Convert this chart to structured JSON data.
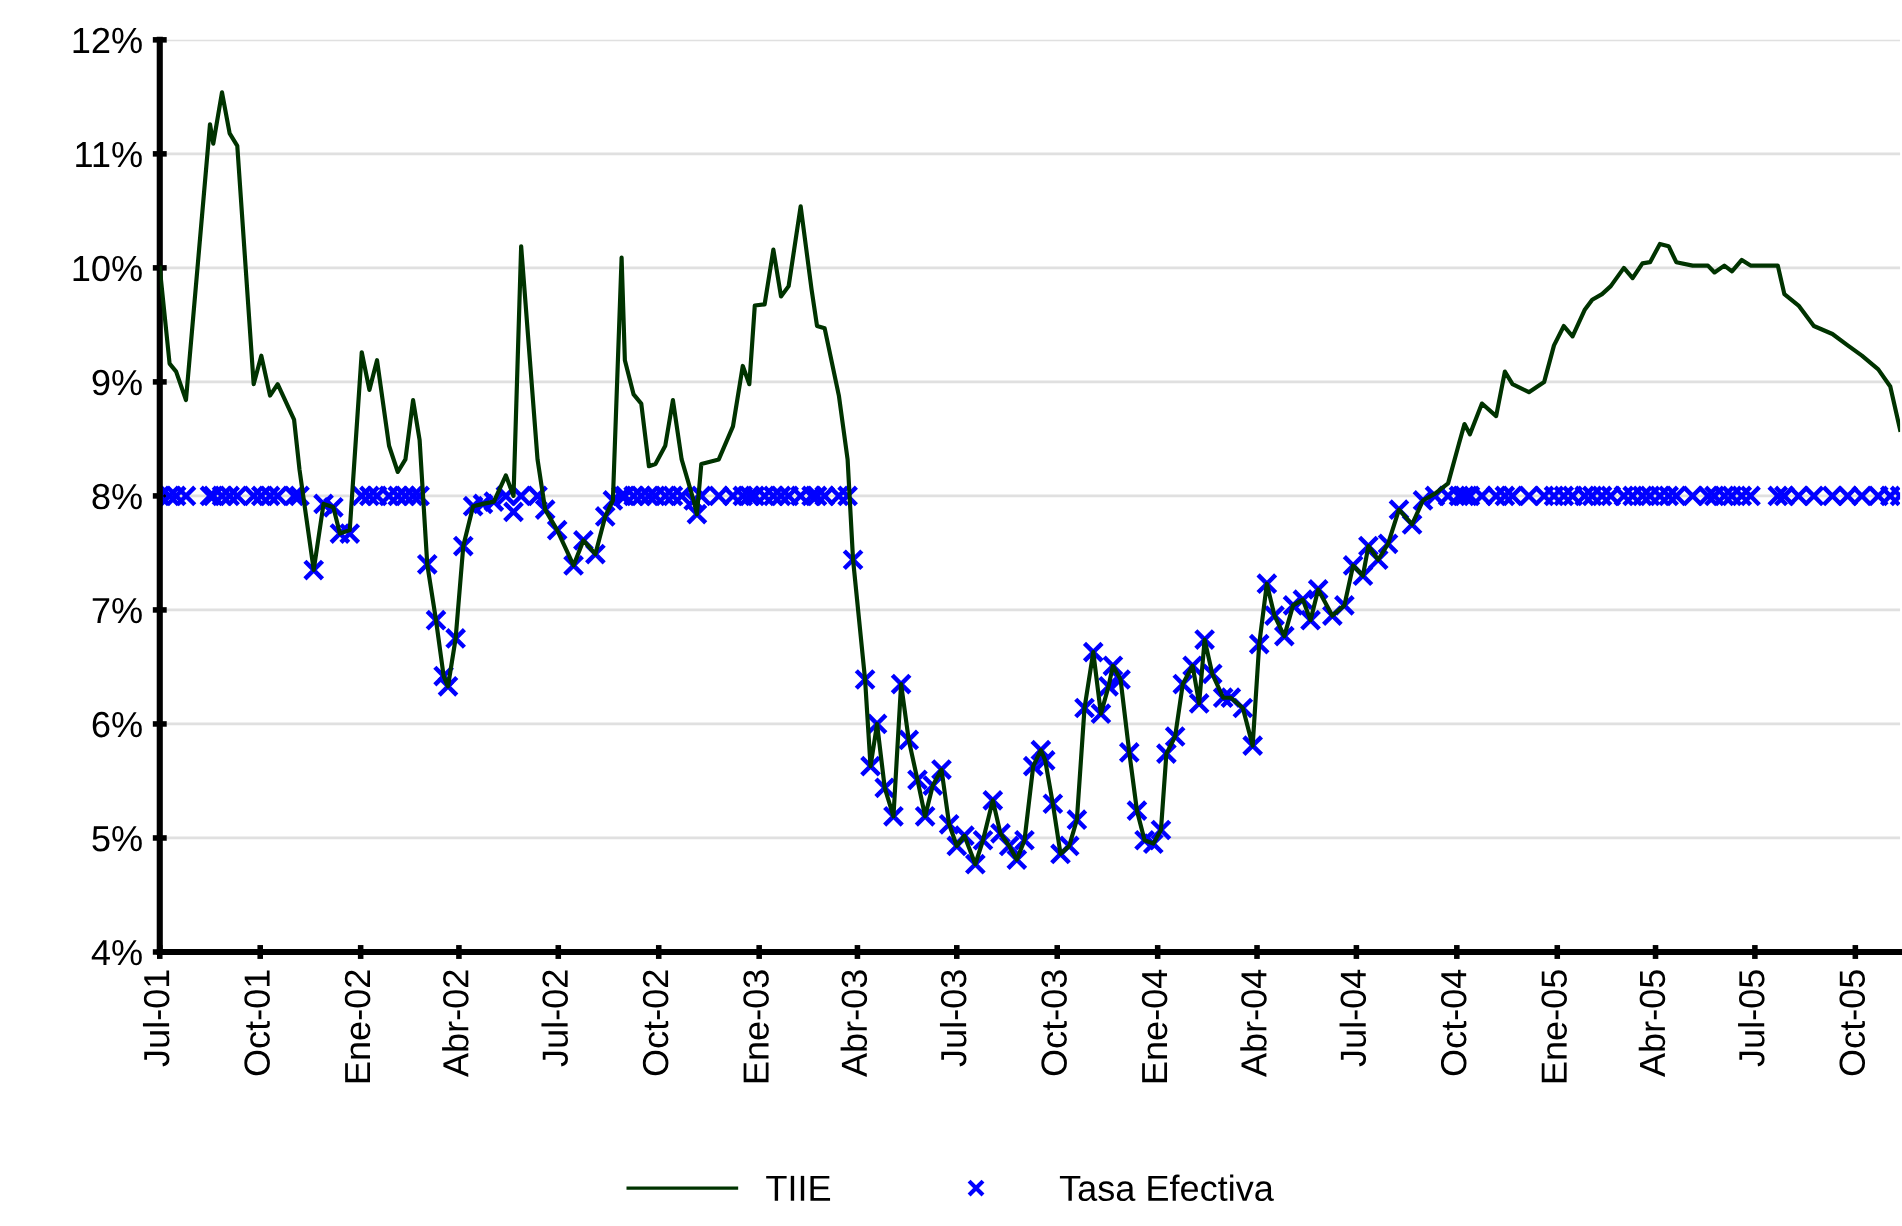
{
  "chart_data": {
    "type": "line",
    "x": [
      "2001-07-01",
      "2001-07-10",
      "2001-07-16",
      "2001-07-25",
      "2001-08-16",
      "2001-08-19",
      "2001-08-27",
      "2001-09-03",
      "2001-09-10",
      "2001-09-25",
      "2001-10-02",
      "2001-10-10",
      "2001-10-17",
      "2001-11-01",
      "2001-11-06",
      "2001-11-19",
      "2001-11-28",
      "2001-12-07",
      "2001-12-13",
      "2001-12-22",
      "2002-01-02",
      "2002-01-09",
      "2002-01-16",
      "2002-01-27",
      "2002-02-04",
      "2002-02-11",
      "2002-02-18",
      "2002-02-24",
      "2002-03-03",
      "2002-03-11",
      "2002-03-18",
      "2002-03-22",
      "2002-03-29",
      "2002-04-05",
      "2002-04-14",
      "2002-04-23",
      "2002-05-03",
      "2002-05-14",
      "2002-05-21",
      "2002-05-28",
      "2002-06-12",
      "2002-06-19",
      "2002-06-30",
      "2002-07-15",
      "2002-07-24",
      "2002-08-04",
      "2002-08-13",
      "2002-08-20",
      "2002-08-28",
      "2002-08-31",
      "2002-09-08",
      "2002-09-15",
      "2002-09-22",
      "2002-09-28",
      "2002-10-07",
      "2002-10-14",
      "2002-10-22",
      "2002-11-02",
      "2002-11-05",
      "2002-11-09",
      "2002-11-25",
      "2002-12-08",
      "2002-12-17",
      "2002-12-23",
      "2002-12-28",
      "2003-01-06",
      "2003-01-14",
      "2003-01-21",
      "2003-01-28",
      "2003-02-08",
      "2003-02-18",
      "2003-02-23",
      "2003-03-02",
      "2003-03-15",
      "2003-03-23",
      "2003-03-28",
      "2003-04-08",
      "2003-04-13",
      "2003-04-19",
      "2003-04-26",
      "2003-05-04",
      "2003-05-11",
      "2003-05-18",
      "2003-05-26",
      "2003-06-02",
      "2003-06-09",
      "2003-06-17",
      "2003-06-24",
      "2003-07-01",
      "2003-07-08",
      "2003-07-18",
      "2003-07-25",
      "2003-08-03",
      "2003-08-10",
      "2003-08-18",
      "2003-08-25",
      "2003-09-01",
      "2003-09-09",
      "2003-09-16",
      "2003-09-20",
      "2003-09-27",
      "2003-10-04",
      "2003-10-12",
      "2003-10-19",
      "2003-10-26",
      "2003-11-03",
      "2003-11-10",
      "2003-11-17",
      "2003-11-21",
      "2003-11-28",
      "2003-12-06",
      "2003-12-13",
      "2003-12-20",
      "2003-12-28",
      "2004-01-04",
      "2004-01-09",
      "2004-01-17",
      "2004-01-24",
      "2004-02-02",
      "2004-02-08",
      "2004-02-13",
      "2004-02-20",
      "2004-03-01",
      "2004-03-08",
      "2004-03-19",
      "2004-03-28",
      "2004-04-03",
      "2004-04-10",
      "2004-04-17",
      "2004-04-26",
      "2004-05-04",
      "2004-05-13",
      "2004-05-20",
      "2004-05-27",
      "2004-06-09",
      "2004-06-20",
      "2004-06-28",
      "2004-07-07",
      "2004-07-12",
      "2004-07-21",
      "2004-07-30",
      "2004-08-09",
      "2004-08-21",
      "2004-08-31",
      "2004-09-11",
      "2004-09-23",
      "2004-10-03",
      "2004-10-08",
      "2004-10-13",
      "2004-10-24",
      "2004-11-06",
      "2004-11-14",
      "2004-11-21",
      "2004-12-06",
      "2004-12-20",
      "2004-12-29",
      "2005-01-07",
      "2005-01-15",
      "2005-01-26",
      "2005-02-02",
      "2005-02-11",
      "2005-02-19",
      "2005-03-03",
      "2005-03-11",
      "2005-03-20",
      "2005-03-27",
      "2005-04-05",
      "2005-04-13",
      "2005-04-20",
      "2005-05-05",
      "2005-05-19",
      "2005-05-25",
      "2005-06-03",
      "2005-06-10",
      "2005-06-19",
      "2005-06-27",
      "2005-07-22",
      "2005-07-28",
      "2005-08-10",
      "2005-08-24",
      "2005-09-10",
      "2005-09-24",
      "2005-10-07",
      "2005-10-22",
      "2005-11-02",
      "2005-11-11"
    ],
    "series": [
      {
        "name": "TIIE",
        "color": "#003300",
        "marker": "none",
        "values": [
          10.0,
          9.16,
          9.09,
          8.84,
          11.26,
          11.09,
          11.54,
          11.18,
          11.07,
          8.98,
          9.23,
          8.88,
          8.98,
          8.67,
          8.23,
          7.35,
          7.93,
          7.9,
          7.67,
          7.7,
          9.26,
          8.93,
          9.19,
          8.44,
          8.21,
          8.32,
          8.84,
          8.49,
          7.4,
          6.91,
          6.42,
          6.33,
          6.75,
          7.56,
          7.91,
          7.93,
          7.95,
          8.18,
          8.0,
          10.19,
          8.32,
          7.88,
          7.7,
          7.39,
          7.61,
          7.49,
          7.82,
          7.96,
          10.09,
          9.19,
          8.89,
          8.81,
          8.26,
          8.28,
          8.44,
          8.84,
          8.32,
          7.96,
          7.84,
          8.28,
          8.32,
          8.61,
          9.14,
          8.98,
          9.67,
          9.68,
          10.16,
          9.75,
          9.84,
          10.54,
          9.81,
          9.49,
          9.47,
          8.88,
          8.32,
          7.44,
          6.39,
          5.63,
          6.0,
          5.44,
          5.19,
          6.35,
          5.86,
          5.51,
          5.19,
          5.46,
          5.6,
          5.12,
          4.93,
          5.02,
          4.77,
          4.98,
          5.33,
          5.04,
          4.93,
          4.81,
          4.98,
          5.63,
          5.77,
          5.68,
          5.3,
          4.86,
          4.93,
          5.16,
          6.14,
          6.63,
          6.09,
          6.33,
          6.51,
          6.39,
          5.75,
          5.24,
          4.98,
          4.95,
          5.07,
          5.74,
          5.89,
          6.35,
          6.51,
          6.18,
          6.74,
          6.44,
          6.23,
          6.23,
          6.14,
          5.81,
          6.7,
          7.23,
          6.95,
          6.77,
          7.04,
          7.09,
          6.91,
          7.18,
          6.95,
          7.04,
          7.39,
          7.3,
          7.56,
          7.44,
          7.58,
          7.88,
          7.75,
          7.96,
          8.02,
          8.11,
          8.46,
          8.63,
          8.54,
          8.81,
          8.7,
          9.09,
          8.98,
          8.91,
          9.0,
          9.32,
          9.49,
          9.4,
          9.63,
          9.72,
          9.77,
          9.84,
          10.0,
          9.91,
          10.04,
          10.05,
          10.21,
          10.19,
          10.05,
          10.02,
          10.02,
          9.96,
          10.02,
          9.97,
          10.07,
          10.02,
          10.02,
          9.77,
          9.67,
          9.49,
          9.42,
          9.32,
          9.23,
          9.11,
          8.96,
          8.58
        ]
      },
      {
        "name": "Tasa Efectiva",
        "type": "scatter",
        "color": "#0000ff",
        "marker": "cross",
        "values": [
          8,
          8,
          8,
          8,
          8,
          8,
          8,
          8,
          8,
          8,
          8,
          8,
          8,
          8,
          8,
          7.35,
          7.93,
          7.9,
          7.67,
          7.67,
          8,
          8,
          8,
          8,
          8,
          8,
          8,
          8,
          7.4,
          6.91,
          6.42,
          6.33,
          6.75,
          7.56,
          7.91,
          7.93,
          7.95,
          8,
          7.86,
          8,
          8,
          7.88,
          7.7,
          7.39,
          7.61,
          7.49,
          7.82,
          7.96,
          8,
          8,
          8,
          8,
          8,
          8,
          8,
          8,
          8,
          7.96,
          7.84,
          8,
          8,
          8,
          8,
          8,
          8,
          8,
          8,
          8,
          8,
          8,
          8,
          8,
          8,
          8,
          8,
          7.44,
          6.39,
          5.63,
          6.0,
          5.44,
          5.19,
          6.35,
          5.86,
          5.51,
          5.19,
          5.46,
          5.6,
          5.12,
          4.93,
          5.02,
          4.77,
          4.98,
          5.33,
          5.04,
          4.93,
          4.81,
          4.98,
          5.63,
          5.77,
          5.68,
          5.3,
          4.86,
          4.93,
          5.16,
          6.14,
          6.63,
          6.09,
          6.33,
          6.51,
          6.39,
          5.75,
          5.24,
          4.98,
          4.95,
          5.07,
          5.74,
          5.89,
          6.35,
          6.51,
          6.18,
          6.74,
          6.44,
          6.23,
          6.23,
          6.14,
          5.81,
          6.7,
          7.23,
          6.95,
          6.77,
          7.04,
          7.09,
          6.91,
          7.18,
          6.95,
          7.04,
          7.39,
          7.3,
          7.56,
          7.44,
          7.58,
          7.88,
          7.75,
          7.96,
          8,
          8,
          8,
          8,
          8,
          8,
          8,
          8,
          8,
          8,
          8,
          8,
          8,
          8,
          8,
          8,
          8,
          8,
          8,
          8,
          8,
          8,
          8,
          8,
          8,
          8,
          8,
          8,
          8,
          8,
          8,
          8,
          8,
          8,
          8,
          8,
          8,
          8,
          8,
          8,
          8,
          8
        ]
      }
    ],
    "xlim": [
      "2001-07-01",
      "2005-11-11"
    ],
    "xticks": [
      {
        "value": "2001-07-01",
        "label": "Jul-01"
      },
      {
        "value": "2001-10-01",
        "label": "Oct-01"
      },
      {
        "value": "2002-01-01",
        "label": "Ene-02"
      },
      {
        "value": "2002-04-01",
        "label": "Abr-02"
      },
      {
        "value": "2002-07-01",
        "label": "Jul-02"
      },
      {
        "value": "2002-10-01",
        "label": "Oct-02"
      },
      {
        "value": "2003-01-01",
        "label": "Ene-03"
      },
      {
        "value": "2003-04-01",
        "label": "Abr-03"
      },
      {
        "value": "2003-07-01",
        "label": "Jul-03"
      },
      {
        "value": "2003-10-01",
        "label": "Oct-03"
      },
      {
        "value": "2004-01-01",
        "label": "Ene-04"
      },
      {
        "value": "2004-04-01",
        "label": "Abr-04"
      },
      {
        "value": "2004-07-01",
        "label": "Jul-04"
      },
      {
        "value": "2004-10-01",
        "label": "Oct-04"
      },
      {
        "value": "2005-01-01",
        "label": "Ene-05"
      },
      {
        "value": "2005-04-01",
        "label": "Abr-05"
      },
      {
        "value": "2005-07-01",
        "label": "Jul-05"
      },
      {
        "value": "2005-10-01",
        "label": "Oct-05"
      }
    ],
    "ylim": [
      4,
      12
    ],
    "yticks": [
      {
        "value": 4,
        "label": "4%"
      },
      {
        "value": 5,
        "label": "5%"
      },
      {
        "value": 6,
        "label": "6%"
      },
      {
        "value": 7,
        "label": "7%"
      },
      {
        "value": 8,
        "label": "8%"
      },
      {
        "value": 9,
        "label": "9%"
      },
      {
        "value": 10,
        "label": "10%"
      },
      {
        "value": 11,
        "label": "11%"
      },
      {
        "value": 12,
        "label": "12%"
      }
    ],
    "grid": "y",
    "legend": "bottom"
  }
}
